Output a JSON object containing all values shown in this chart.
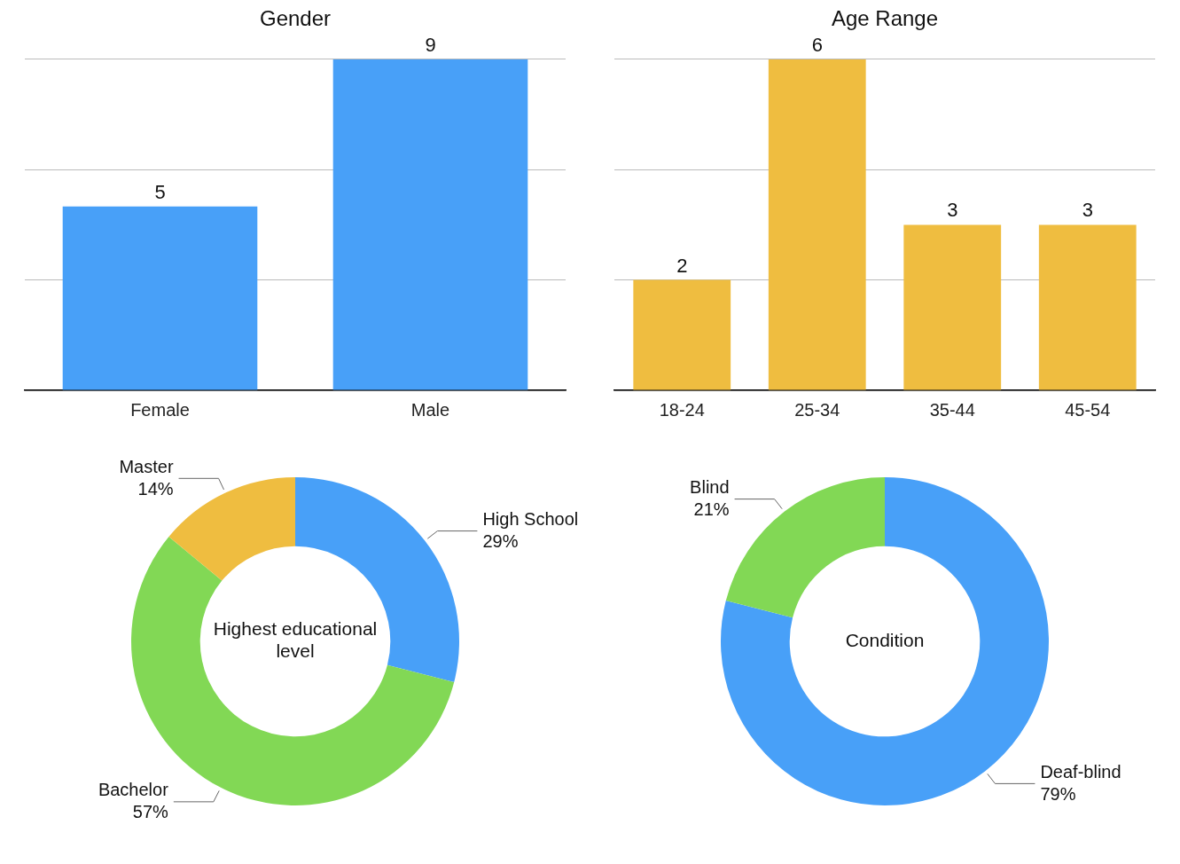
{
  "chart_data": [
    {
      "type": "bar",
      "title": "Gender",
      "categories": [
        "Female",
        "Male"
      ],
      "values": [
        5,
        9
      ],
      "color": "#48a0f8",
      "ylim": [
        0,
        9
      ],
      "yticks": [
        0,
        3,
        6,
        9
      ],
      "grid": "y",
      "tick_labels": "x",
      "data_labels": true
    },
    {
      "type": "bar",
      "title": "Age Range",
      "categories": [
        "18-24",
        "25-34",
        "35-44",
        "45-54"
      ],
      "values": [
        2,
        6,
        3,
        3
      ],
      "color": "#efbd40",
      "ylim": [
        0,
        6
      ],
      "yticks": [
        0,
        2,
        4,
        6
      ],
      "grid": "y",
      "tick_labels": "x",
      "data_labels": true
    },
    {
      "type": "donut",
      "title": "Highest educational level",
      "categories": [
        "High School",
        "Bachelor",
        "Master"
      ],
      "values": [
        29,
        57,
        14
      ],
      "colors": [
        "#48a0f8",
        "#82d855",
        "#efbd40"
      ],
      "value_labels": [
        "29%",
        "57%",
        "14%"
      ]
    },
    {
      "type": "donut",
      "title": "Condition",
      "categories": [
        "Deaf-blind",
        "Blind"
      ],
      "values": [
        79,
        21
      ],
      "colors": [
        "#48a0f8",
        "#82d855"
      ],
      "value_labels": [
        "79%",
        "21%"
      ]
    }
  ]
}
